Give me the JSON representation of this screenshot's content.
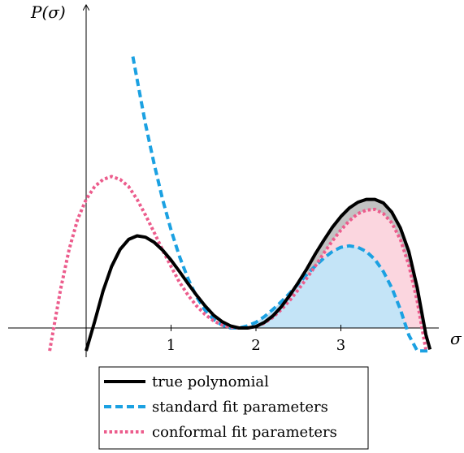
{
  "chart_data": {
    "type": "line",
    "title": "",
    "xlabel": "σ",
    "ylabel": "P(σ)",
    "xlim": [
      -0.9,
      4.3
    ],
    "ylim": [
      -0.32,
      3.8
    ],
    "grid": false,
    "legend_position": "bottom-center",
    "x_ticks": [
      1,
      2,
      3
    ],
    "x_tick_labels": [
      "1",
      "2",
      "3"
    ],
    "colors": {
      "true": "#000000",
      "standard": "#1ba1e2",
      "conformal": "#ec5c8c",
      "fill_standard": "#c4e4f7",
      "fill_conformal": "#fbd6df",
      "fill_true": "#c2c2c2"
    },
    "series": [
      {
        "name": "true polynomial",
        "style": "solid",
        "x": [
          0.0,
          0.1,
          0.2,
          0.3,
          0.4,
          0.5,
          0.6,
          0.7,
          0.8,
          0.9,
          1.0,
          1.1,
          1.2,
          1.3,
          1.4,
          1.5,
          1.6,
          1.7,
          1.8,
          1.9,
          2.0,
          2.1,
          2.2,
          2.3,
          2.4,
          2.5,
          2.6,
          2.7,
          2.8,
          2.9,
          3.0,
          3.1,
          3.2,
          3.3,
          3.4,
          3.5,
          3.6,
          3.7,
          3.8,
          3.9,
          4.0,
          4.05
        ],
        "y": [
          -0.32,
          0.09,
          0.52,
          0.86,
          1.1,
          1.24,
          1.29,
          1.27,
          1.2,
          1.09,
          0.95,
          0.79,
          0.62,
          0.46,
          0.31,
          0.18,
          0.09,
          0.03,
          0.0,
          0.0,
          0.02,
          0.08,
          0.17,
          0.3,
          0.46,
          0.64,
          0.83,
          1.04,
          1.23,
          1.41,
          1.56,
          1.68,
          1.76,
          1.8,
          1.8,
          1.75,
          1.62,
          1.4,
          1.07,
          0.56,
          -0.09,
          -0.3
        ]
      },
      {
        "name": "standard fit parameters",
        "style": "dashed",
        "x": [
          0.55,
          0.6,
          0.7,
          0.8,
          0.9,
          1.0,
          1.1,
          1.2,
          1.3,
          1.4,
          1.5,
          1.6,
          1.7,
          1.8,
          1.9,
          2.0,
          2.1,
          2.2,
          2.3,
          2.4,
          2.5,
          2.6,
          2.7,
          2.8,
          2.9,
          3.0,
          3.1,
          3.2,
          3.3,
          3.4,
          3.5,
          3.6,
          3.7,
          3.8,
          3.9,
          4.0,
          4.05
        ],
        "y": [
          3.8,
          3.48,
          2.85,
          2.3,
          1.8,
          1.37,
          1.0,
          0.69,
          0.44,
          0.25,
          0.12,
          0.04,
          0.0,
          0.0,
          0.03,
          0.08,
          0.16,
          0.26,
          0.37,
          0.49,
          0.62,
          0.75,
          0.87,
          0.98,
          1.07,
          1.13,
          1.15,
          1.13,
          1.07,
          0.96,
          0.79,
          0.56,
          0.26,
          -0.1,
          -0.32,
          -0.32,
          -0.32
        ]
      },
      {
        "name": "conformal fit parameters",
        "style": "dotted",
        "x": [
          -0.43,
          -0.4,
          -0.3,
          -0.2,
          -0.1,
          0.0,
          0.1,
          0.2,
          0.3,
          0.4,
          0.5,
          0.6,
          0.7,
          0.8,
          0.9,
          1.0,
          1.1,
          1.2,
          1.3,
          1.4,
          1.5,
          1.6,
          1.7,
          1.8,
          1.9,
          2.0,
          2.1,
          2.2,
          2.3,
          2.4,
          2.5,
          2.6,
          2.7,
          2.8,
          2.9,
          3.0,
          3.1,
          3.2,
          3.3,
          3.4,
          3.5,
          3.6,
          3.7,
          3.8,
          3.9,
          4.0
        ],
        "y": [
          -0.32,
          -0.12,
          0.55,
          1.1,
          1.52,
          1.8,
          1.98,
          2.08,
          2.12,
          2.08,
          1.98,
          1.8,
          1.58,
          1.34,
          1.09,
          0.86,
          0.64,
          0.46,
          0.31,
          0.19,
          0.1,
          0.04,
          0.01,
          0.0,
          0.0,
          0.02,
          0.07,
          0.15,
          0.26,
          0.39,
          0.54,
          0.7,
          0.87,
          1.05,
          1.22,
          1.37,
          1.5,
          1.6,
          1.65,
          1.66,
          1.6,
          1.47,
          1.24,
          0.88,
          0.37,
          -0.3
        ]
      }
    ]
  }
}
